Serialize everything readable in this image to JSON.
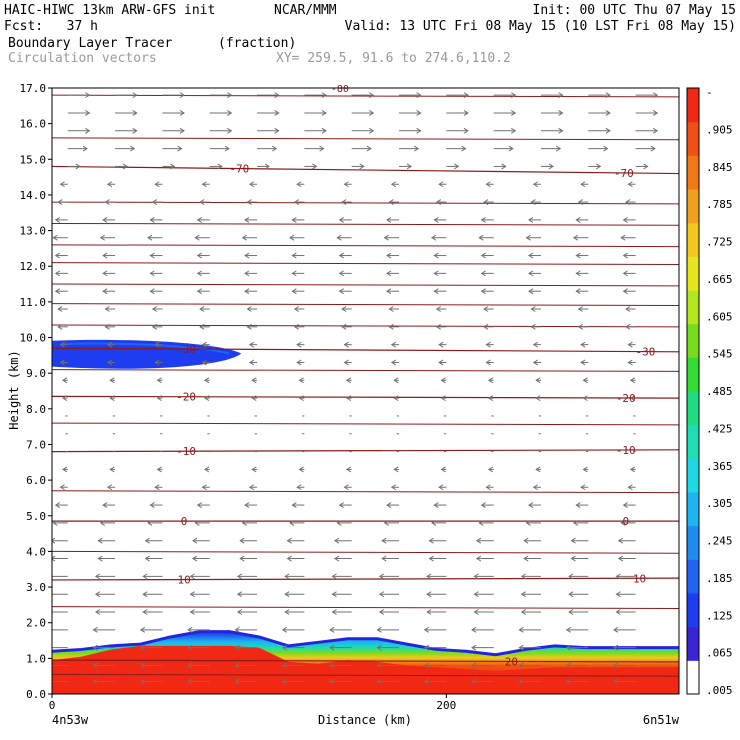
{
  "header": {
    "line1_left": "HAIC-HIWC 13km ARW-GFS init",
    "line1_mid": "NCAR/MMM",
    "line1_right": "Init: 00 UTC Thu 07 May 15",
    "line2_left": "Fcst:   37 h",
    "line2_right": "Valid: 13 UTC Fri 08 May 15 (10 LST Fri 08 May 15)",
    "field_name": "Boundary Layer Tracer",
    "field_units": "(fraction)",
    "vector_name": "Circulation vectors",
    "xy_text": "XY= 259.5, 91.6 to 274.6,110.2"
  },
  "colors": {
    "contour": "#8b1a1a",
    "vector": "#707070",
    "colorbar": [
      "#ffffff",
      "#3a24d6",
      "#1e3cf0",
      "#1e64f0",
      "#1e8cf0",
      "#1eb4f0",
      "#1ed8e6",
      "#1edcb4",
      "#1edc82",
      "#32dc32",
      "#78dc1e",
      "#b4e61e",
      "#e6e61e",
      "#f0c81e",
      "#f0a01e",
      "#f07814",
      "#f05014",
      "#f02814"
    ]
  },
  "chart_data": {
    "type": "cross-section",
    "xlabel": "Distance (km)",
    "ylabel": "Height (km)",
    "xlim": [
      0,
      318
    ],
    "ylim": [
      0,
      17
    ],
    "x_ticks": [
      {
        "value": 0,
        "label": "0"
      },
      {
        "value": 200,
        "label": "200"
      }
    ],
    "x_end_labels": [
      "4n53w",
      "6n51w"
    ],
    "y_ticks": [
      {
        "value": 0,
        "label": "0.0"
      },
      {
        "value": 1,
        "label": "1.0"
      },
      {
        "value": 2,
        "label": "2.0"
      },
      {
        "value": 3,
        "label": "3.0"
      },
      {
        "value": 4,
        "label": "4.0"
      },
      {
        "value": 5,
        "label": "5.0"
      },
      {
        "value": 6,
        "label": "6.0"
      },
      {
        "value": 7,
        "label": "7.0"
      },
      {
        "value": 8,
        "label": "8.0"
      },
      {
        "value": 9,
        "label": "9.0"
      },
      {
        "value": 10,
        "label": "10.0"
      },
      {
        "value": 11,
        "label": "11.0"
      },
      {
        "value": 12,
        "label": "12.0"
      },
      {
        "value": 13,
        "label": "13.0"
      },
      {
        "value": 14,
        "label": "14.0"
      },
      {
        "value": 15,
        "label": "15.0"
      },
      {
        "value": 16,
        "label": "16.0"
      },
      {
        "value": 17,
        "label": "17.0"
      }
    ],
    "colorbar_labels": [
      "-",
      ".905",
      ".845",
      ".785",
      ".725",
      ".665",
      ".605",
      ".545",
      ".485",
      ".425",
      ".365",
      ".305",
      ".245",
      ".185",
      ".125",
      ".065",
      ".005"
    ],
    "contour_lines": [
      {
        "label": "-70",
        "left": 14.8,
        "right": 14.6,
        "label_x": [
          95,
          290
        ]
      },
      {
        "label": "-30",
        "left": 9.7,
        "right": 9.6,
        "label_x": [
          68,
          301
        ]
      },
      {
        "label": "-20",
        "left": 8.35,
        "right": 8.3,
        "label_x": [
          68,
          291
        ]
      },
      {
        "label": "-10",
        "left": 6.8,
        "right": 6.85,
        "label_x": [
          68,
          291
        ]
      },
      {
        "label": "0",
        "left": 4.85,
        "right": 4.85,
        "label_x": [
          67,
          291
        ]
      },
      {
        "label": "10",
        "left": 3.2,
        "right": 3.25,
        "label_x": [
          67,
          298
        ]
      },
      {
        "label": "20",
        "left": 0.95,
        "right": 0.9,
        "label_x": [
          233
        ]
      }
    ],
    "plain_contour_heights": [
      0.55,
      2.45,
      4.0,
      5.7,
      7.6,
      9.1,
      10.35,
      10.95,
      11.5,
      12.1,
      12.6,
      13.2,
      13.8,
      15.6,
      16.8
    ],
    "top_label": "-80",
    "vector_rows": [
      {
        "z": 16.8,
        "dx": 9,
        "dy": 0
      },
      {
        "z": 16.3,
        "dx": 9,
        "dy": 0
      },
      {
        "z": 15.8,
        "dx": 9,
        "dy": 0
      },
      {
        "z": 15.3,
        "dx": 8,
        "dy": 0
      },
      {
        "z": 14.8,
        "dx": 5,
        "dy": 0
      },
      {
        "z": 14.3,
        "dx": -3,
        "dy": 0
      },
      {
        "z": 13.8,
        "dx": -4,
        "dy": 0
      },
      {
        "z": 13.3,
        "dx": -5,
        "dy": 0
      },
      {
        "z": 12.8,
        "dx": -6,
        "dy": 0
      },
      {
        "z": 12.3,
        "dx": -5,
        "dy": 0
      },
      {
        "z": 11.8,
        "dx": -5,
        "dy": 0
      },
      {
        "z": 11.3,
        "dx": -5,
        "dy": 0
      },
      {
        "z": 10.8,
        "dx": -4,
        "dy": 0
      },
      {
        "z": 10.3,
        "dx": -4,
        "dy": 0
      },
      {
        "z": 9.8,
        "dx": -3,
        "dy": 0
      },
      {
        "z": 9.3,
        "dx": -3,
        "dy": 0
      },
      {
        "z": 8.8,
        "dx": -2,
        "dy": 0
      },
      {
        "z": 8.3,
        "dx": -2,
        "dy": 0
      },
      {
        "z": 7.8,
        "dx": -1,
        "dy": 0
      },
      {
        "z": 7.3,
        "dx": -1,
        "dy": 0
      },
      {
        "z": 6.8,
        "dx": -1,
        "dy": 0
      },
      {
        "z": 6.3,
        "dx": -2,
        "dy": 0
      },
      {
        "z": 5.8,
        "dx": -3,
        "dy": 0
      },
      {
        "z": 5.3,
        "dx": -5,
        "dy": 0
      },
      {
        "z": 4.8,
        "dx": -6,
        "dy": 0
      },
      {
        "z": 4.3,
        "dx": -7,
        "dy": 0
      },
      {
        "z": 3.8,
        "dx": -7,
        "dy": 0
      },
      {
        "z": 3.3,
        "dx": -8,
        "dy": 0
      },
      {
        "z": 2.8,
        "dx": -8,
        "dy": 0
      },
      {
        "z": 2.3,
        "dx": -8,
        "dy": 0
      },
      {
        "z": 1.8,
        "dx": -9,
        "dy": 0
      },
      {
        "z": 1.3,
        "dx": -9,
        "dy": 0
      },
      {
        "z": 0.8,
        "dx": -9,
        "dy": 0
      },
      {
        "z": 0.35,
        "dx": -9,
        "dy": 0
      }
    ],
    "vector_columns_km": [
      8,
      32,
      56,
      80,
      104,
      128,
      152,
      176,
      200,
      224,
      248,
      272,
      296
    ],
    "tracer_band_top": [
      [
        0,
        1.2
      ],
      [
        15,
        1.25
      ],
      [
        30,
        1.35
      ],
      [
        45,
        1.4
      ],
      [
        60,
        1.6
      ],
      [
        75,
        1.75
      ],
      [
        90,
        1.75
      ],
      [
        105,
        1.6
      ],
      [
        120,
        1.35
      ],
      [
        135,
        1.45
      ],
      [
        150,
        1.55
      ],
      [
        165,
        1.55
      ],
      [
        180,
        1.4
      ],
      [
        195,
        1.25
      ],
      [
        210,
        1.2
      ],
      [
        225,
        1.1
      ],
      [
        240,
        1.25
      ],
      [
        255,
        1.35
      ],
      [
        270,
        1.3
      ],
      [
        285,
        1.3
      ],
      [
        300,
        1.3
      ],
      [
        318,
        1.3
      ]
    ],
    "tracer_red_top": [
      [
        0,
        0.95
      ],
      [
        15,
        1.05
      ],
      [
        30,
        1.25
      ],
      [
        45,
        1.35
      ],
      [
        60,
        1.35
      ],
      [
        75,
        1.35
      ],
      [
        90,
        1.35
      ],
      [
        105,
        1.3
      ],
      [
        120,
        0.9
      ],
      [
        135,
        0.85
      ],
      [
        150,
        0.95
      ],
      [
        165,
        0.9
      ],
      [
        180,
        0.8
      ],
      [
        195,
        0.75
      ],
      [
        210,
        0.7
      ],
      [
        225,
        0.65
      ],
      [
        240,
        0.7
      ],
      [
        255,
        0.75
      ],
      [
        270,
        0.75
      ],
      [
        285,
        0.75
      ],
      [
        300,
        0.75
      ],
      [
        318,
        0.75
      ]
    ],
    "upper_blob": {
      "x_start": 0,
      "x_end": 96,
      "z_center": 9.55,
      "half_height": 0.35
    }
  }
}
